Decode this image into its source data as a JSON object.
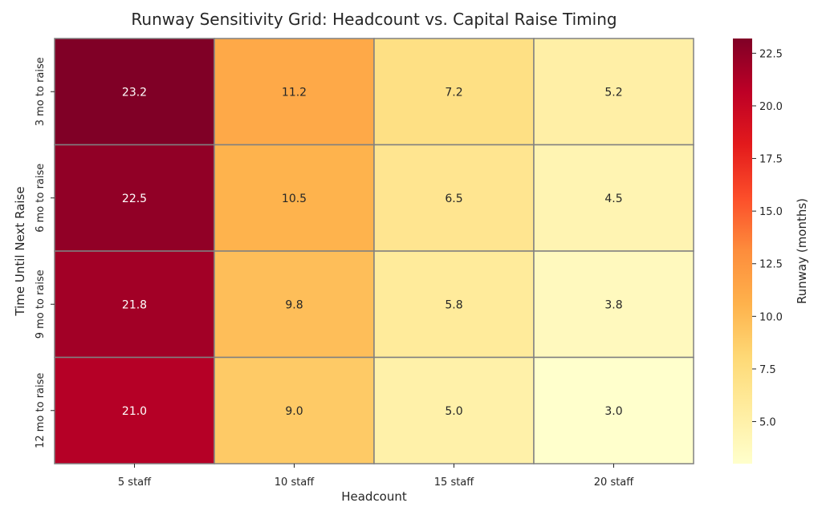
{
  "chart_data": {
    "type": "heatmap",
    "title": "Runway Sensitivity Grid: Headcount vs. Capital Raise Timing",
    "xlabel": "Headcount",
    "ylabel": "Time Until Next Raise",
    "x_categories": [
      "5 staff",
      "10 staff",
      "15 staff",
      "20 staff"
    ],
    "y_categories": [
      "3 mo to raise",
      "6 mo to raise",
      "9 mo to raise",
      "12 mo to raise"
    ],
    "values": [
      [
        23.2,
        11.2,
        7.2,
        5.2
      ],
      [
        22.5,
        10.5,
        6.5,
        4.5
      ],
      [
        21.8,
        9.8,
        5.8,
        3.8
      ],
      [
        21.0,
        9.0,
        5.0,
        3.0
      ]
    ],
    "value_format": "0.0",
    "colorbar": {
      "label": "Runway (months)",
      "min": 3.0,
      "max": 23.2,
      "ticks": [
        5.0,
        7.5,
        10.0,
        12.5,
        15.0,
        17.5,
        20.0,
        22.5
      ],
      "colormap": "YlOrRd"
    },
    "grid_line_color": "#808080"
  }
}
